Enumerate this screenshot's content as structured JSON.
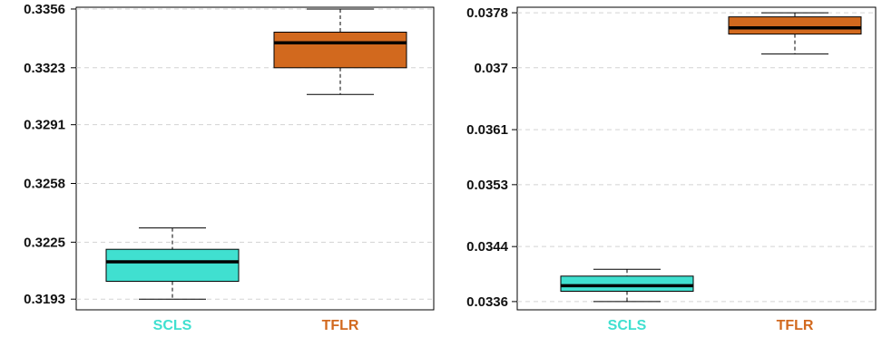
{
  "chart_data": [
    {
      "type": "box",
      "categories": [
        "SCLS",
        "TFLR"
      ],
      "category_colors": [
        "#40E0D0",
        "#D2691E"
      ],
      "yticks": [
        "0.3193",
        "0.3225",
        "0.3258",
        "0.3291",
        "0.3323",
        "0.3356"
      ],
      "ylim": [
        0.3187,
        0.3357
      ],
      "grid": true,
      "boxes": [
        {
          "whisker_low": 0.3193,
          "q1": 0.3203,
          "median": 0.3214,
          "q3": 0.3221,
          "whisker_high": 0.3233
        },
        {
          "whisker_low": 0.3308,
          "q1": 0.3323,
          "median": 0.3337,
          "q3": 0.3343,
          "whisker_high": 0.3356
        }
      ]
    },
    {
      "type": "box",
      "categories": [
        "SCLS",
        "TFLR"
      ],
      "category_colors": [
        "#40E0D0",
        "#D2691E"
      ],
      "yticks": [
        "0.0336",
        "0.0344",
        "0.0353",
        "0.0361",
        "0.037",
        "0.0378"
      ],
      "ylim": [
        0.03348,
        0.03788
      ],
      "grid": true,
      "boxes": [
        {
          "whisker_low": 0.0336,
          "q1": 0.03375,
          "median": 0.03383,
          "q3": 0.03397,
          "whisker_high": 0.03407
        },
        {
          "whisker_low": 0.0372,
          "q1": 0.03749,
          "median": 0.03758,
          "q3": 0.03774,
          "whisker_high": 0.0378
        }
      ]
    }
  ]
}
